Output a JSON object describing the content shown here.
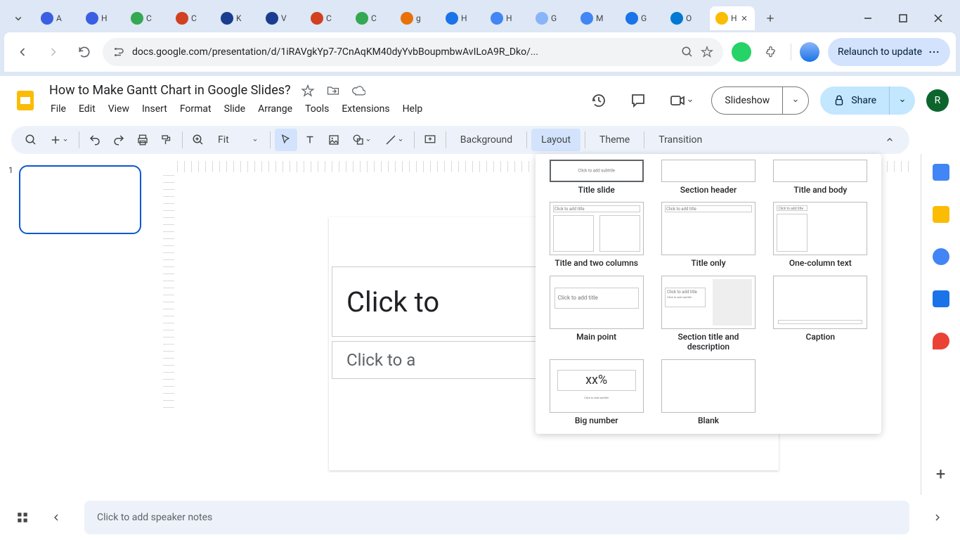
{
  "browser": {
    "tabs": [
      {
        "label": "A",
        "favicon_color": "#3b5fe2"
      },
      {
        "label": "H",
        "favicon_color": "#3b5fe2"
      },
      {
        "label": "C",
        "favicon_color": "#34a853"
      },
      {
        "label": "C",
        "favicon_color": "#d14020"
      },
      {
        "label": "K",
        "favicon_color": "#1a3d8f"
      },
      {
        "label": "V",
        "favicon_color": "#1a3d8f"
      },
      {
        "label": "C",
        "favicon_color": "#d14020"
      },
      {
        "label": "C",
        "favicon_color": "#34a853"
      },
      {
        "label": "g",
        "favicon_color": "#e8710a"
      },
      {
        "label": "H",
        "favicon_color": "#1a73e8"
      },
      {
        "label": "H",
        "favicon_color": "#4285f4"
      },
      {
        "label": "G",
        "favicon_color": "#8ab4f8"
      },
      {
        "label": "M",
        "favicon_color": "#4285f4"
      },
      {
        "label": "G",
        "favicon_color": "#1a73e8"
      },
      {
        "label": "O",
        "favicon_color": "#0078d4"
      },
      {
        "label": "H",
        "favicon_color": "#fbbc04",
        "active": true
      }
    ],
    "url": "docs.google.com/presentation/d/1iRAVgkYp7-7CnAqKM40dyYvbBoupmbwAvILoA9R_Dko/...",
    "relaunch_label": "Relaunch to update"
  },
  "app": {
    "doc_title": "How to Make Gantt Chart in Google Slides?",
    "menus": [
      "File",
      "Edit",
      "View",
      "Insert",
      "Format",
      "Slide",
      "Arrange",
      "Tools",
      "Extensions",
      "Help"
    ],
    "slideshow_label": "Slideshow",
    "share_label": "Share",
    "avatar_letter": "R"
  },
  "toolbar": {
    "zoom_label": "Fit",
    "background_label": "Background",
    "layout_label": "Layout",
    "theme_label": "Theme",
    "transition_label": "Transition"
  },
  "slide": {
    "number": "1",
    "title_placeholder": "Click to",
    "subtitle_placeholder": "Click to a"
  },
  "layout_panel": {
    "items": [
      {
        "label": "Title slide",
        "selected": true
      },
      {
        "label": "Section header"
      },
      {
        "label": "Title and body"
      },
      {
        "label": "Title and two columns"
      },
      {
        "label": "Title only"
      },
      {
        "label": "One-column text"
      },
      {
        "label": "Main point"
      },
      {
        "label": "Section title and description"
      },
      {
        "label": "Caption"
      },
      {
        "label": "Big number"
      },
      {
        "label": "Blank"
      }
    ],
    "big_number_text": "xx%",
    "main_point_text": "Click to add title",
    "click_title": "Click to add title",
    "click_subtitle": "Click to add subtitle"
  },
  "speaker_notes_placeholder": "Click to add speaker notes",
  "side_panel_colors": [
    "#4285f4",
    "#fbbc04",
    "#4285f4",
    "#1a73e8",
    "#ea4335"
  ],
  "colors": {
    "accent": "#0b57d0",
    "chrome_bg": "#dde7f5",
    "toolbar_bg": "#edf2fa",
    "share_bg": "#c2e7ff"
  }
}
